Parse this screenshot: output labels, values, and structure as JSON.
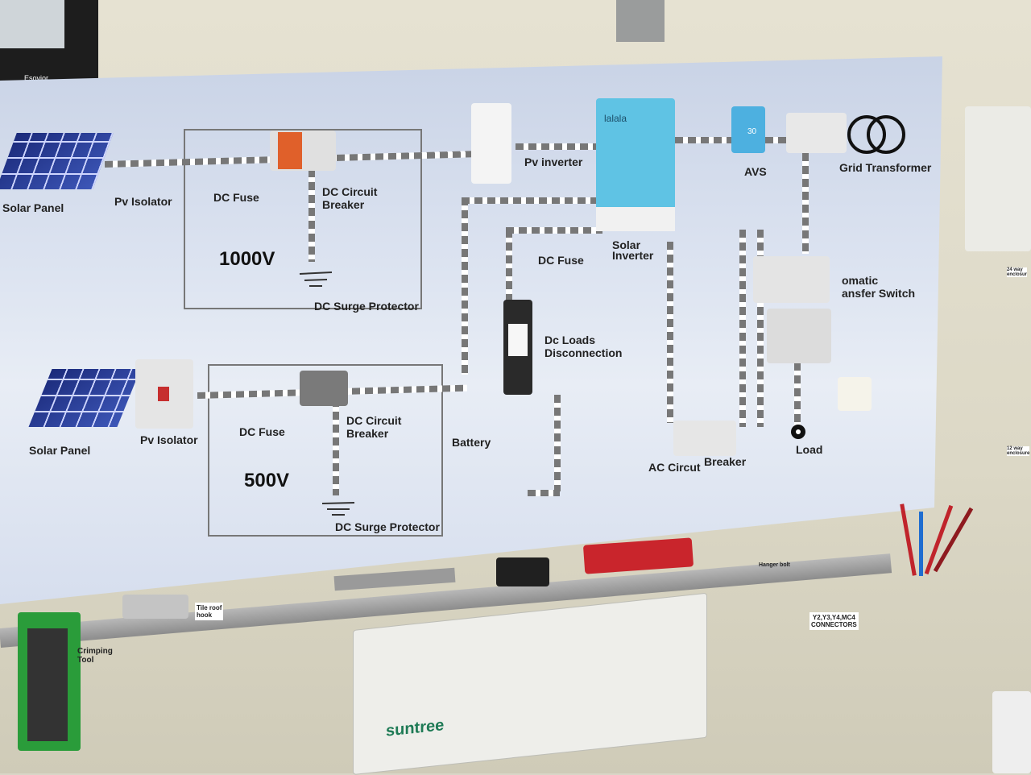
{
  "board": {
    "top": {
      "solar_panel": "Solar Panel",
      "pv_isolator": "Pv Isolator",
      "dc_fuse": "DC Fuse",
      "dc_circuit_breaker": "DC Circuit\nBreaker",
      "voltage": "1000V",
      "dc_surge": "DC Surge Protector",
      "pv_inverter": "Pv inverter",
      "solar_inverter": "Solar\nInverter",
      "avs": "AVS",
      "grid_transformer": "Grid Transformer",
      "dc_fuse_2": "DC Fuse",
      "ats": "omatic\nansfer Switch"
    },
    "bottom": {
      "solar_panel": "Solar Panel",
      "pv_isolator": "Pv Isolator",
      "dc_fuse": "DC Fuse",
      "dc_circuit_breaker": "DC Circuit\nBreaker",
      "voltage": "500V",
      "dc_surge": "DC Surge Protector",
      "battery": "Battery",
      "dc_loads": "Dc Loads\nDisconnection",
      "ac_circuit": "AC Circut",
      "breaker": "Breaker",
      "load": "Load"
    }
  },
  "wall_labels": {
    "tile_roof_hook": "Tile roof\nhook",
    "crimping_tool": "Crimping\nTool",
    "hanger_bolt": "Hanger bolt",
    "connectors": "Y2,Y3,Y4,MC4\nCONNECTORS",
    "enclosure_24": "24 way\nenclosur",
    "enclosure_12": "12 way\nenclosure"
  },
  "brands": {
    "suntree": "suntree",
    "lcd_display": "30",
    "inverter_logo": "lalala",
    "light_brand": "Esovior"
  }
}
